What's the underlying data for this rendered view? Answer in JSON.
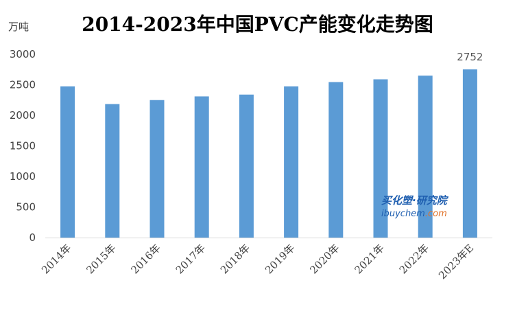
{
  "chart_data": {
    "type": "bar",
    "title": "2014-2023年中国PVC产能变化走势图",
    "unit": "万吨",
    "categories": [
      "2014年",
      "2015年",
      "2016年",
      "2017年",
      "2018年",
      "2019年",
      "2020年",
      "2021年",
      "2022年",
      "2023年E"
    ],
    "series": [
      {
        "values": [
          2475,
          2185,
          2250,
          2310,
          2340,
          2475,
          2545,
          2590,
          2650,
          2752
        ],
        "color": "#5b9bd5"
      }
    ],
    "data_labels": [
      {
        "category": "2023年E",
        "text": "2752"
      }
    ],
    "ylim": [
      0,
      3000
    ],
    "yticks": [
      0,
      500,
      1000,
      1500,
      2000,
      2500,
      3000
    ],
    "grid": false,
    "legend": "none"
  },
  "watermark": {
    "line1": "买化塑·研究院",
    "line2a": "ibuychem",
    "line2b": ".com"
  }
}
